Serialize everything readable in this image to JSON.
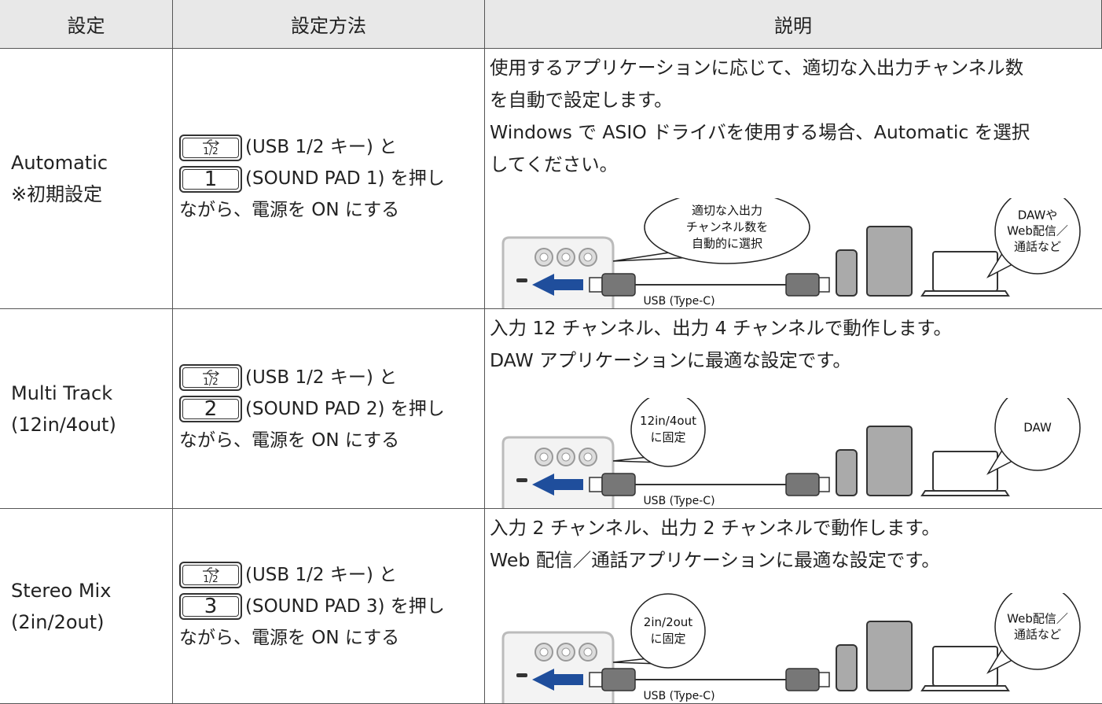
{
  "table": {
    "headers": [
      "設定",
      "設定方法",
      "説明"
    ],
    "rows": [
      {
        "setting": [
          "Automatic",
          "※初期設定"
        ],
        "method": {
          "usb_key": "1/2",
          "usb_text": "(USB 1/2 キー) と",
          "pad_key": "1",
          "pad_text": "(SOUND PAD 1) を押し",
          "tail": "ながら、電源を ON にする"
        },
        "description": [
          "使用するアプリケーションに応じて、適切な入出力チャンネル数",
          "を自動で設定します。",
          "Windows で ASIO ドライバを使用する場合、Automatic を選択",
          "してください。"
        ],
        "diagram": {
          "bubble_left": [
            "適切な入出力",
            "チャンネル数を",
            "自動的に選択"
          ],
          "bubble_right": [
            "DAWや",
            "Web配信／",
            "通話など"
          ],
          "cable": "USB (Type-C)"
        }
      },
      {
        "setting": [
          "Multi Track",
          "(12in/4out)"
        ],
        "method": {
          "usb_key": "1/2",
          "usb_text": "(USB 1/2 キー) と",
          "pad_key": "2",
          "pad_text": "(SOUND PAD 2) を押し",
          "tail": "ながら、電源を ON にする"
        },
        "description": [
          "入力 12 チャンネル、出力 4 チャンネルで動作します。",
          "DAW アプリケーションに最適な設定です。"
        ],
        "diagram": {
          "bubble_left": [
            "12in/4out",
            "に固定"
          ],
          "bubble_right": [
            "DAW"
          ],
          "cable": "USB (Type-C)"
        }
      },
      {
        "setting": [
          "Stereo Mix",
          "(2in/2out)"
        ],
        "method": {
          "usb_key": "1/2",
          "usb_text": "(USB 1/2 キー) と",
          "pad_key": "3",
          "pad_text": "(SOUND PAD 3) を押し",
          "tail": "ながら、電源を ON にする"
        },
        "description": [
          "入力 2 チャンネル、出力 2 チャンネルで動作します。",
          "Web 配信／通話アプリケーションに最適な設定です。"
        ],
        "diagram": {
          "bubble_left": [
            "2in/2out",
            "に固定"
          ],
          "bubble_right": [
            "Web配信／",
            "通話など"
          ],
          "cable": "USB (Type-C)"
        }
      }
    ]
  }
}
